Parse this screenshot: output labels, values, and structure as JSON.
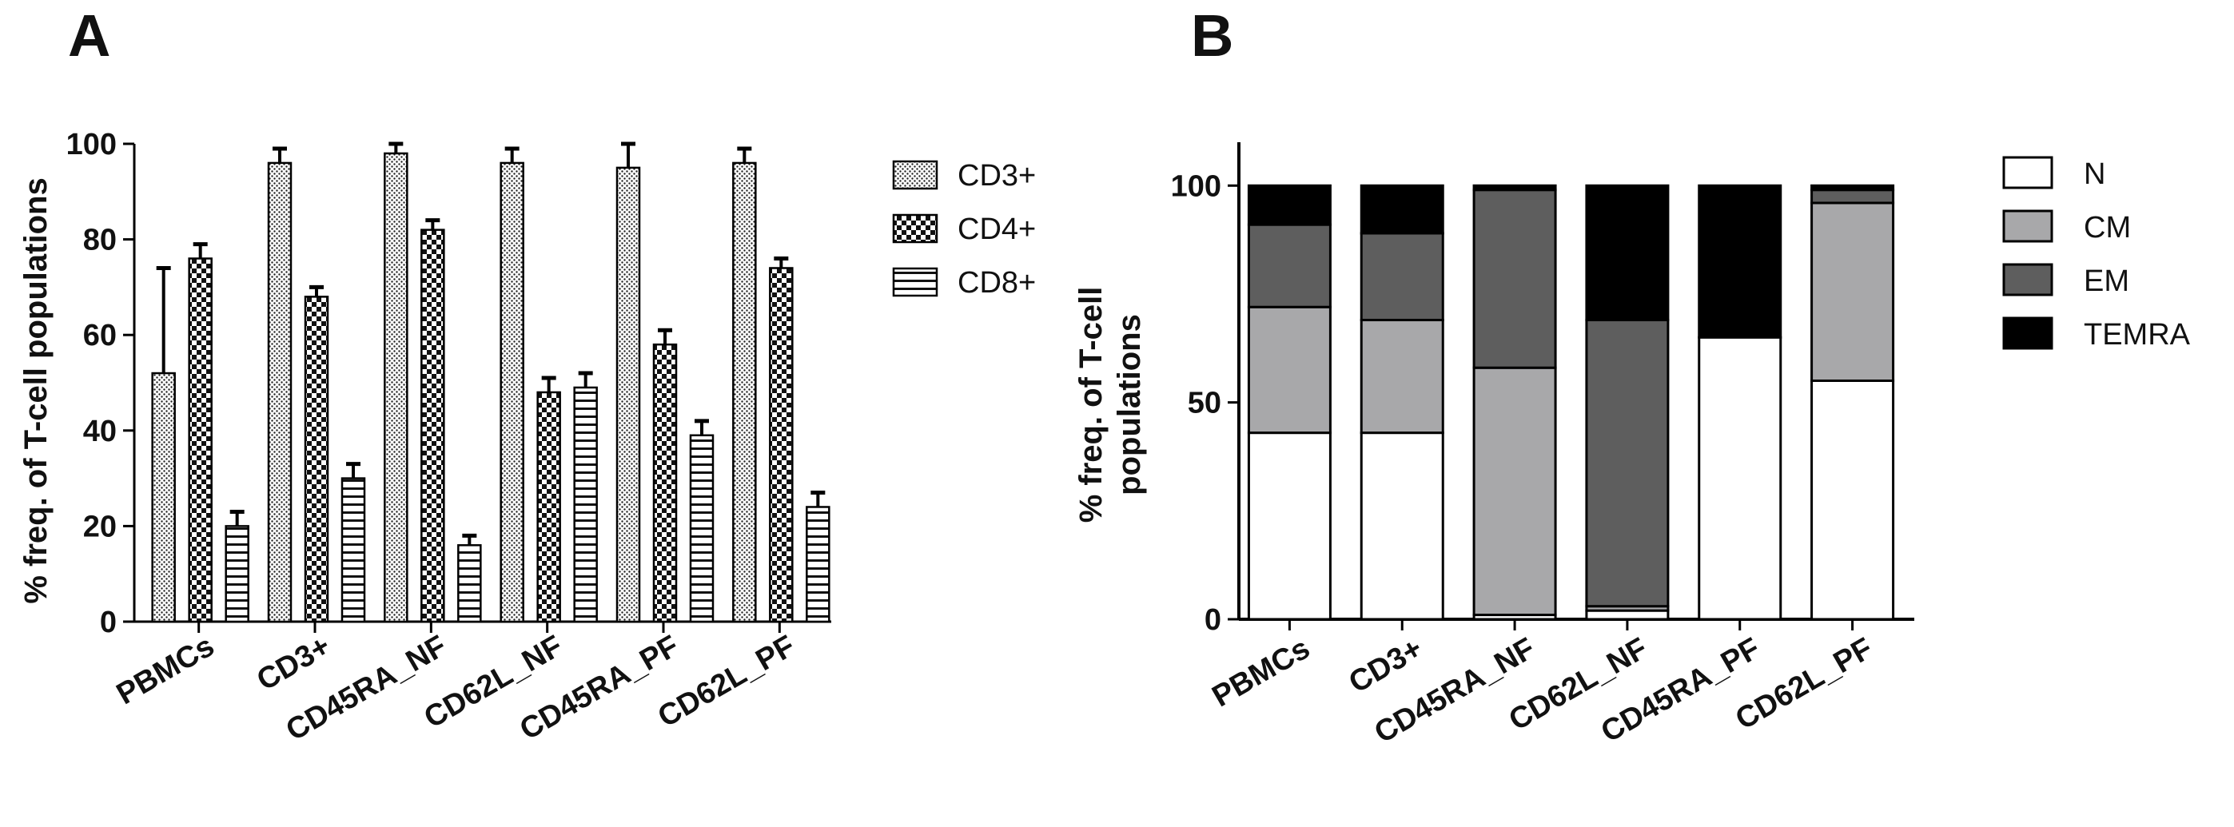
{
  "panels": {
    "a_label": "A",
    "b_label": "B"
  },
  "chart_data": [
    {
      "id": "A",
      "type": "bar",
      "title": "",
      "ylabel": "% freq. of T-cell populations",
      "xlabel": "",
      "ylim": [
        0,
        100
      ],
      "yticks": [
        0,
        20,
        40,
        60,
        80,
        100
      ],
      "categories": [
        "PBMCs",
        "CD3+",
        "CD45RA_NF",
        "CD62L_NF",
        "CD45RA_PF",
        "CD62L_PF"
      ],
      "series": [
        {
          "name": "CD3+",
          "pattern": "dots",
          "values": [
            52,
            96,
            98,
            96,
            95,
            96
          ],
          "errors": [
            22,
            3,
            2,
            3,
            5,
            3
          ]
        },
        {
          "name": "CD4+",
          "pattern": "checker",
          "values": [
            76,
            68,
            82,
            48,
            58,
            74
          ],
          "errors": [
            3,
            2,
            2,
            3,
            3,
            2
          ]
        },
        {
          "name": "CD8+",
          "pattern": "hlines",
          "values": [
            20,
            30,
            16,
            49,
            39,
            24
          ],
          "errors": [
            3,
            3,
            2,
            3,
            3,
            3
          ]
        }
      ],
      "legend": "right"
    },
    {
      "id": "B",
      "type": "bar",
      "stacked": true,
      "title": "",
      "ylabel_lines": [
        "% freq. of T-cell",
        "populations"
      ],
      "xlabel": "",
      "ylim": [
        0,
        110
      ],
      "yticks": [
        0,
        50,
        100
      ],
      "categories": [
        "PBMCs",
        "CD3+",
        "CD45RA_NF",
        "CD62L_NF",
        "CD45RA_PF",
        "CD62L_PF"
      ],
      "series": [
        {
          "name": "N",
          "color": "#ffffff",
          "values": [
            43,
            43,
            1,
            2,
            65,
            55
          ]
        },
        {
          "name": "CM",
          "color": "#a8a8aa",
          "values": [
            29,
            26,
            57,
            1,
            0,
            41
          ]
        },
        {
          "name": "EM",
          "color": "#5e5e5e",
          "values": [
            19,
            20,
            41,
            66,
            0,
            3
          ]
        },
        {
          "name": "TEMRA",
          "color": "#000000",
          "values": [
            9,
            11,
            1,
            31,
            35,
            1
          ]
        }
      ],
      "legend": "right"
    }
  ]
}
